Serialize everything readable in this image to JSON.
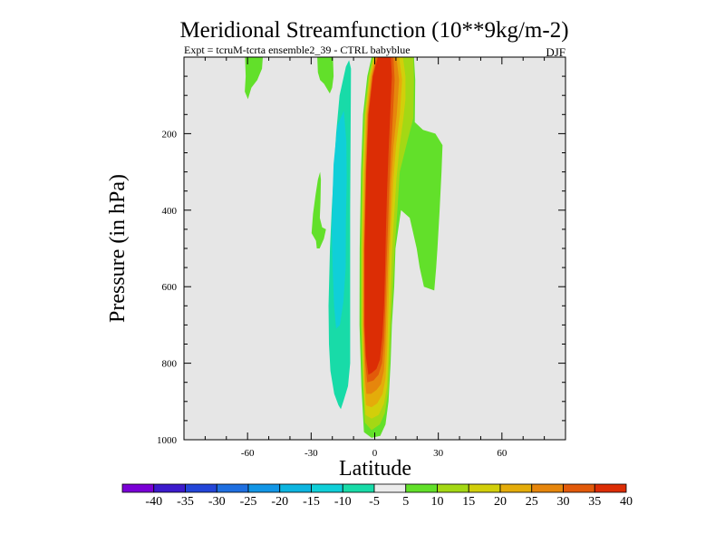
{
  "chart_data": {
    "type": "contour",
    "title": "Meridional Streamfunction (10**9kg/m-2)",
    "subtitle": "Expt = tcruM-tcrta ensemble2_39 - CTRL babyblue",
    "season_label": "DJF",
    "xlabel": "Latitude",
    "ylabel": "Pressure (in hPa)",
    "xlim": [
      -90,
      90
    ],
    "ylim": [
      0,
      1000
    ],
    "y_inverted": true,
    "x_ticks": [
      -60,
      -30,
      0,
      30,
      60
    ],
    "x_tick_labels": [
      "-60",
      "-30",
      "0",
      "30",
      "60"
    ],
    "y_ticks": [
      200,
      400,
      600,
      800,
      1000
    ],
    "y_tick_labels": [
      "200",
      "400",
      "600",
      "800",
      "1000"
    ],
    "background_color": "#e6e6e6",
    "contour_levels": [
      -40,
      -35,
      -30,
      -25,
      -20,
      -15,
      -10,
      -5,
      5,
      10,
      15,
      20,
      25,
      30,
      35,
      40
    ],
    "colorbar": {
      "labels": [
        "-40",
        "-35",
        "-30",
        "-25",
        "-20",
        "-15",
        "-10",
        "-5",
        "5",
        "10",
        "15",
        "20",
        "25",
        "30",
        "35",
        "40"
      ],
      "colors": [
        "#7a00d6",
        "#3c1bcc",
        "#2345d8",
        "#1f6fe0",
        "#1296e6",
        "#0db5e0",
        "#10cfd8",
        "#18dba8",
        "#ececec",
        "#62e02a",
        "#a4d814",
        "#d2cf0a",
        "#e4ac0a",
        "#e6860c",
        "#e25a0a",
        "#dc2d05"
      ]
    },
    "regions": [
      {
        "name": "positive-cell-10-outer",
        "level": 5,
        "color": "#62e02a",
        "points": [
          [
            -5.1,
            980
          ],
          [
            -6.3,
            860
          ],
          [
            -7.2,
            700
          ],
          [
            -7.1,
            500
          ],
          [
            -6.5,
            300
          ],
          [
            -5.5,
            150
          ],
          [
            -3.5,
            50
          ],
          [
            -1.5,
            0
          ],
          [
            18.5,
            0
          ],
          [
            19.1,
            60
          ],
          [
            18.9,
            170
          ],
          [
            22.8,
            190
          ],
          [
            28.6,
            200
          ],
          [
            32,
            230
          ],
          [
            31.5,
            300
          ],
          [
            30.6,
            400
          ],
          [
            29.6,
            500
          ],
          [
            29,
            550
          ],
          [
            28.1,
            610
          ],
          [
            23.2,
            600
          ],
          [
            21.2,
            550
          ],
          [
            19.8,
            500
          ],
          [
            16.5,
            420
          ],
          [
            12.4,
            400
          ],
          [
            9.8,
            500
          ],
          [
            9.2,
            600
          ],
          [
            8.1,
            700
          ],
          [
            7.5,
            800
          ],
          [
            6.5,
            900
          ],
          [
            5.1,
            960
          ],
          [
            2.6,
            990
          ],
          [
            -1.5,
            995
          ]
        ]
      },
      {
        "name": "positive-cell-15",
        "level": 10,
        "color": "#a4d814",
        "points": [
          [
            -4.7,
            955
          ],
          [
            -5.6,
            860
          ],
          [
            -6.5,
            700
          ],
          [
            -6.5,
            500
          ],
          [
            -5.9,
            300
          ],
          [
            -4.9,
            150
          ],
          [
            -2.9,
            50
          ],
          [
            -0.9,
            0
          ],
          [
            18.2,
            0
          ],
          [
            18.5,
            60
          ],
          [
            18.2,
            160
          ],
          [
            15.4,
            220
          ],
          [
            11.8,
            300
          ],
          [
            10.7,
            400
          ],
          [
            9.4,
            500
          ],
          [
            8.6,
            600
          ],
          [
            7.6,
            700
          ],
          [
            7,
            800
          ],
          [
            6.2,
            880
          ],
          [
            4.8,
            930
          ],
          [
            2.4,
            960
          ],
          [
            -1.5,
            975
          ]
        ]
      },
      {
        "name": "positive-cell-20",
        "level": 15,
        "color": "#d2cf0a",
        "points": [
          [
            -4.3,
            935
          ],
          [
            -5.2,
            860
          ],
          [
            -6,
            700
          ],
          [
            -6,
            500
          ],
          [
            -5.5,
            300
          ],
          [
            -4.4,
            150
          ],
          [
            -2.5,
            50
          ],
          [
            -0.4,
            0
          ],
          [
            13.3,
            0
          ],
          [
            14.5,
            50
          ],
          [
            14.5,
            110
          ],
          [
            13.5,
            160
          ],
          [
            11.8,
            230
          ],
          [
            10.2,
            320
          ],
          [
            9.1,
            420
          ],
          [
            8.1,
            520
          ],
          [
            7.3,
            650
          ],
          [
            6.6,
            760
          ],
          [
            5.8,
            860
          ],
          [
            4.4,
            905
          ],
          [
            1.9,
            935
          ],
          [
            -1.5,
            945
          ]
        ]
      },
      {
        "name": "positive-cell-25",
        "level": 20,
        "color": "#e4ac0a",
        "points": [
          [
            -4.1,
            910
          ],
          [
            -4.9,
            860
          ],
          [
            -5.7,
            700
          ],
          [
            -5.7,
            500
          ],
          [
            -5,
            300
          ],
          [
            -4.1,
            150
          ],
          [
            -2.1,
            50
          ],
          [
            0,
            0
          ],
          [
            11.5,
            0
          ],
          [
            12.9,
            60
          ],
          [
            11.9,
            150
          ],
          [
            10.1,
            230
          ],
          [
            8.8,
            320
          ],
          [
            7.9,
            420
          ],
          [
            7.1,
            520
          ],
          [
            6.5,
            650
          ],
          [
            5.9,
            760
          ],
          [
            5.1,
            840
          ],
          [
            3.7,
            880
          ],
          [
            1.2,
            905
          ],
          [
            -1.5,
            915
          ]
        ]
      },
      {
        "name": "positive-cell-30",
        "level": 25,
        "color": "#e6860c",
        "points": [
          [
            -3.9,
            880
          ],
          [
            -4.6,
            840
          ],
          [
            -5.4,
            700
          ],
          [
            -5.3,
            500
          ],
          [
            -4.6,
            300
          ],
          [
            -3.6,
            150
          ],
          [
            -1.5,
            50
          ],
          [
            0.5,
            0
          ],
          [
            10.2,
            0
          ],
          [
            11.5,
            60
          ],
          [
            10.4,
            150
          ],
          [
            8.9,
            230
          ],
          [
            7.7,
            330
          ],
          [
            7.1,
            440
          ],
          [
            6.3,
            550
          ],
          [
            5.6,
            660
          ],
          [
            5,
            760
          ],
          [
            4.3,
            820
          ],
          [
            2.9,
            855
          ],
          [
            0.8,
            870
          ],
          [
            -1.7,
            880
          ]
        ]
      },
      {
        "name": "positive-cell-35",
        "level": 30,
        "color": "#e25a0a",
        "points": [
          [
            -3.5,
            850
          ],
          [
            -4.4,
            800
          ],
          [
            -5.1,
            700
          ],
          [
            -5,
            500
          ],
          [
            -4.2,
            300
          ],
          [
            -3.2,
            150
          ],
          [
            -1.1,
            50
          ],
          [
            0.9,
            0
          ],
          [
            8.8,
            0
          ],
          [
            9.4,
            60
          ],
          [
            8.6,
            150
          ],
          [
            7.6,
            250
          ],
          [
            6.8,
            350
          ],
          [
            6.2,
            450
          ],
          [
            5.5,
            550
          ],
          [
            5,
            650
          ],
          [
            4.4,
            740
          ],
          [
            3.4,
            800
          ],
          [
            1.8,
            830
          ],
          [
            -0.6,
            845
          ]
        ]
      },
      {
        "name": "positive-cell-40-core",
        "level": 35,
        "color": "#dc2d05",
        "points": [
          [
            -3,
            830
          ],
          [
            -4.2,
            780
          ],
          [
            -4.8,
            700
          ],
          [
            -4.8,
            500
          ],
          [
            -4,
            300
          ],
          [
            -2.9,
            150
          ],
          [
            -0.9,
            50
          ],
          [
            1.5,
            0
          ],
          [
            7.6,
            0
          ],
          [
            8.1,
            50
          ],
          [
            7.3,
            150
          ],
          [
            6.5,
            250
          ],
          [
            5.8,
            350
          ],
          [
            5.3,
            450
          ],
          [
            4.9,
            550
          ],
          [
            4.4,
            650
          ],
          [
            3.6,
            730
          ],
          [
            2.5,
            790
          ],
          [
            0.8,
            815
          ],
          [
            -1.3,
            825
          ]
        ]
      },
      {
        "name": "negative-cell-outer",
        "level": -5,
        "color": "#18dba8",
        "points": [
          [
            -17.1,
            910
          ],
          [
            -19.1,
            880
          ],
          [
            -20.9,
            820
          ],
          [
            -21.6,
            750
          ],
          [
            -21.8,
            650
          ],
          [
            -21.1,
            500
          ],
          [
            -20.3,
            400
          ],
          [
            -19.1,
            280
          ],
          [
            -18.2,
            200
          ],
          [
            -16.6,
            100
          ],
          [
            -13.6,
            25
          ],
          [
            -12.1,
            8
          ],
          [
            -11.2,
            30
          ],
          [
            -11.6,
            400
          ],
          [
            -11.6,
            620
          ],
          [
            -11.6,
            800
          ],
          [
            -12.6,
            860
          ],
          [
            -14.8,
            900
          ],
          [
            -16,
            920
          ]
        ]
      },
      {
        "name": "negative-cell-inner",
        "level": -10,
        "color": "#10cfd8",
        "points": [
          [
            -18.2,
            710
          ],
          [
            -19.2,
            650
          ],
          [
            -19.8,
            560
          ],
          [
            -20.3,
            450
          ],
          [
            -19.9,
            360
          ],
          [
            -19.4,
            280
          ],
          [
            -17.7,
            180
          ],
          [
            -14.6,
            140
          ],
          [
            -13.4,
            220
          ],
          [
            -13.2,
            320
          ],
          [
            -13.6,
            430
          ],
          [
            -13.7,
            550
          ],
          [
            -14.8,
            640
          ],
          [
            -16.4,
            700
          ]
        ]
      },
      {
        "name": "patch-upper-left",
        "level": 5,
        "color": "#62e02a",
        "points": [
          [
            -61.2,
            0
          ],
          [
            -52.8,
            0
          ],
          [
            -53.2,
            30
          ],
          [
            -55.4,
            60
          ],
          [
            -58.2,
            80
          ],
          [
            -59.8,
            110
          ],
          [
            -61.3,
            90
          ],
          [
            -60.9,
            50
          ]
        ]
      },
      {
        "name": "patch-upper-mid",
        "level": 5,
        "color": "#62e02a",
        "points": [
          [
            -27.1,
            0
          ],
          [
            -19.7,
            0
          ],
          [
            -19.4,
            50
          ],
          [
            -20.1,
            80
          ],
          [
            -21.2,
            95
          ],
          [
            -23.9,
            70
          ],
          [
            -25.8,
            60
          ],
          [
            -26.8,
            40
          ]
        ]
      },
      {
        "name": "patch-left-flank",
        "level": 5,
        "color": "#62e02a",
        "points": [
          [
            -25.8,
            300
          ],
          [
            -25.4,
            320
          ],
          [
            -25.6,
            380
          ],
          [
            -25.9,
            420
          ],
          [
            -24.8,
            445
          ],
          [
            -23,
            450
          ],
          [
            -24,
            475
          ],
          [
            -26,
            500
          ],
          [
            -27.3,
            500
          ],
          [
            -27.7,
            480
          ],
          [
            -29.8,
            460
          ],
          [
            -29.1,
            410
          ],
          [
            -27.9,
            360
          ],
          [
            -26.8,
            320
          ]
        ]
      }
    ]
  }
}
